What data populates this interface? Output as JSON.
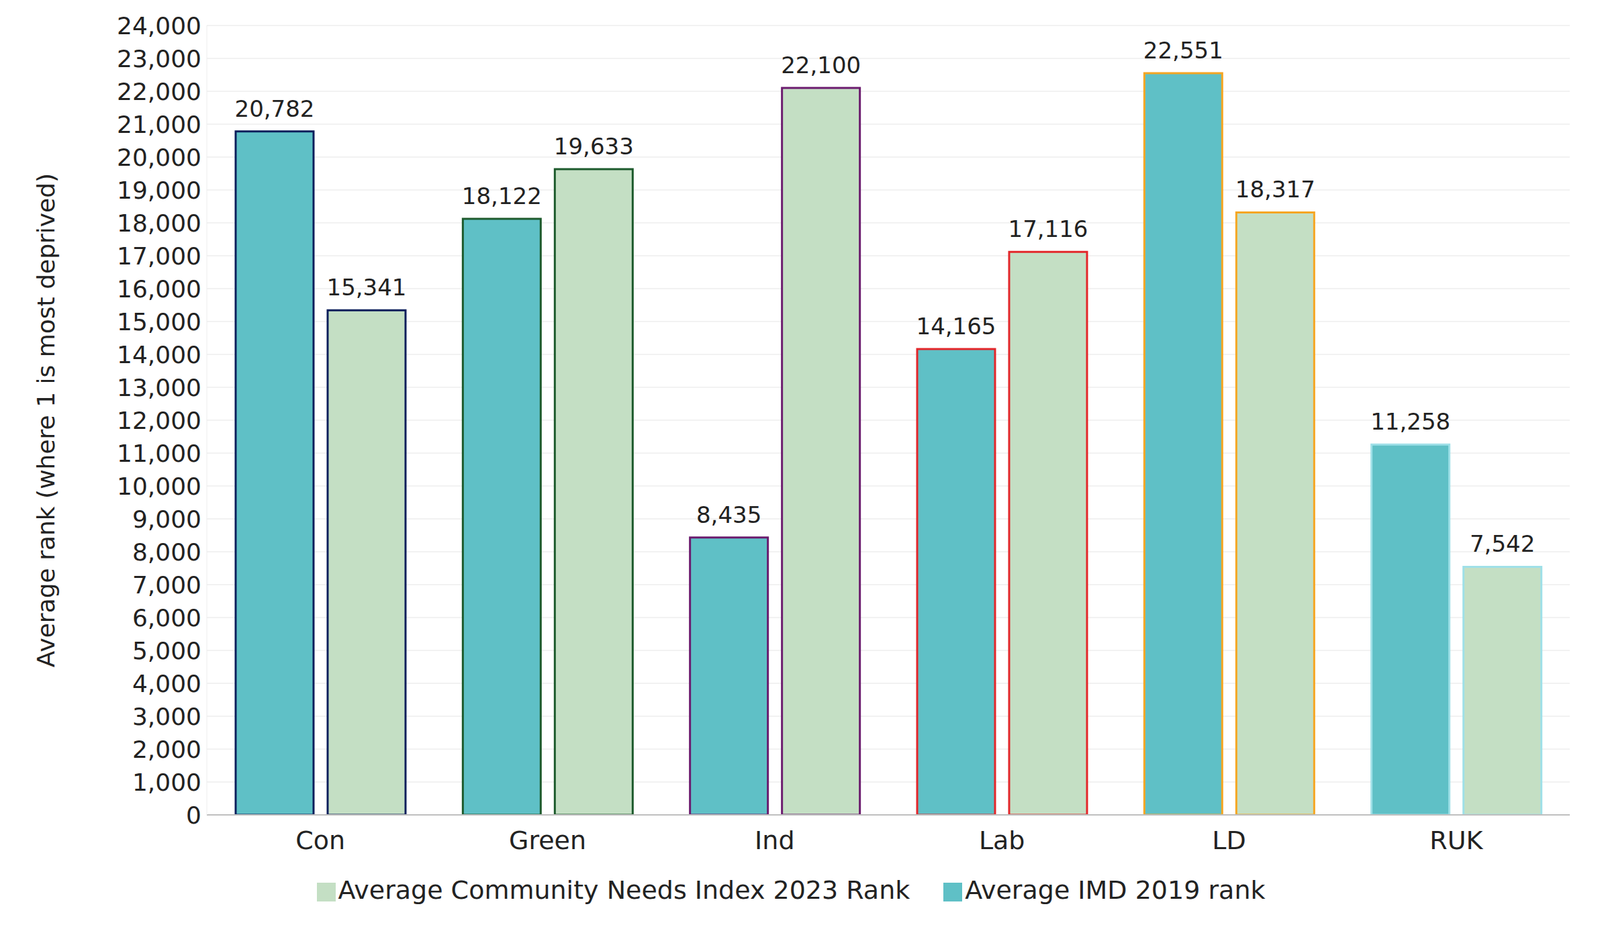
{
  "chart_data": {
    "type": "bar",
    "y_label": "Average rank (where 1 is most deprived)",
    "categories": [
      "Con",
      "Green",
      "Ind",
      "Lab",
      "LD",
      "RUK"
    ],
    "series": [
      {
        "name": "Average IMD 2019 rank",
        "color": "#5fc0c6",
        "values": [
          20782,
          18122,
          8435,
          14165,
          22551,
          11258
        ],
        "value_labels": [
          "20,782",
          "18,122",
          "8,435",
          "14,165",
          "22,551",
          "11,258"
        ]
      },
      {
        "name": "Average Community Needs Index 2023 Rank",
        "color": "#c4dfc4",
        "values": [
          15341,
          19633,
          22100,
          17116,
          18317,
          7542
        ],
        "value_labels": [
          "15,341",
          "19,633",
          "22,100",
          "17,116",
          "18,317",
          "7,542"
        ]
      }
    ],
    "colors": [
      "#0b1e5b",
      "#1d5a2c",
      "#6b1b6e",
      "#e3262a",
      "#f5a623",
      "#9fe0e8"
    ],
    "ylim": [
      0,
      24000
    ],
    "yticks": [
      0,
      {
        "value": 1000,
        "label": "1,000"
      },
      {
        "value": 2000,
        "label": "2,000"
      },
      {
        "value": 3000,
        "label": "3,000"
      },
      {
        "value": 4000,
        "label": "4,000"
      },
      {
        "value": 5000,
        "label": "5,000"
      },
      {
        "value": 6000,
        "label": "6,000"
      },
      {
        "value": 7000,
        "label": "7,000"
      },
      {
        "value": 8000,
        "label": "8,000"
      },
      {
        "value": 9000,
        "label": "9,000"
      },
      {
        "value": 10000,
        "label": "10,000"
      },
      {
        "value": 11000,
        "label": "11,000"
      },
      {
        "value": 12000,
        "label": "12,000"
      },
      {
        "value": 13000,
        "label": "13,000"
      },
      {
        "value": 14000,
        "label": "14,000"
      },
      {
        "value": 15000,
        "label": "15,000"
      },
      {
        "value": 16000,
        "label": "16,000"
      },
      {
        "value": 17000,
        "label": "17,000"
      },
      {
        "value": 18000,
        "label": "18,000"
      },
      {
        "value": 19000,
        "label": "19,000"
      },
      {
        "value": 20000,
        "label": "20,000"
      },
      {
        "value": 21000,
        "label": "21,000"
      },
      {
        "value": 22000,
        "label": "22,000"
      },
      {
        "value": 23000,
        "label": "23,000"
      },
      {
        "value": 24000,
        "label": "24,000"
      }
    ],
    "grid": true,
    "data_labels": true,
    "legend": "bottom"
  }
}
